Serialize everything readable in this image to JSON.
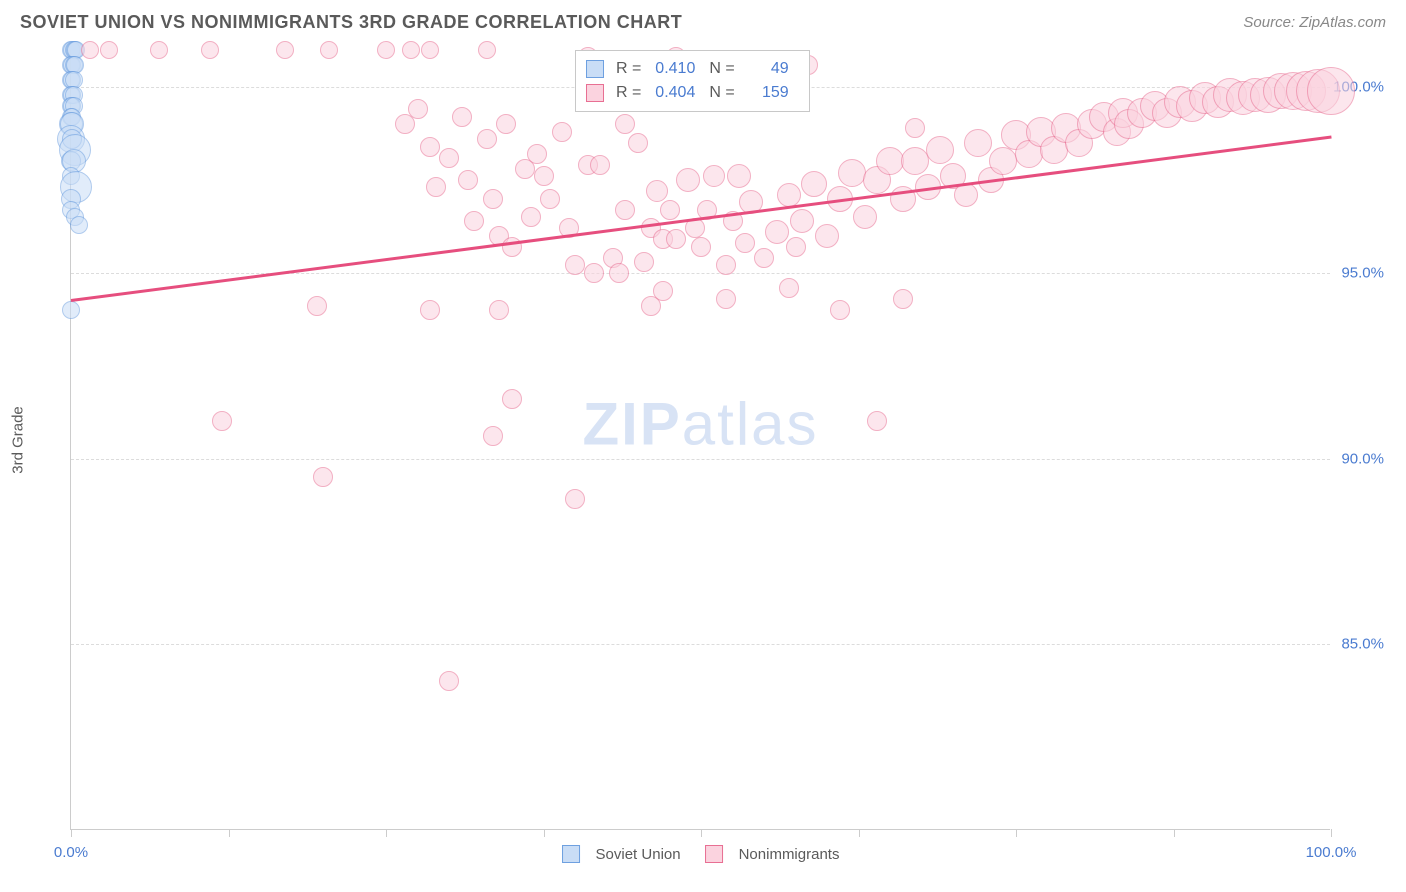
{
  "title": "SOVIET UNION VS NONIMMIGRANTS 3RD GRADE CORRELATION CHART",
  "source_prefix": "Source: ",
  "source_name": "ZipAtlas.com",
  "y_axis_label": "3rd Grade",
  "watermark_a": "ZIP",
  "watermark_b": "atlas",
  "chart": {
    "type": "scatter",
    "background_color": "#ffffff",
    "grid_color": "#dcdcdc",
    "axis_color": "#cccccc",
    "tick_label_color": "#4a7bd0",
    "xlim": [
      0,
      100
    ],
    "ylim": [
      80,
      101
    ],
    "x_ticks": [
      0,
      12.5,
      25,
      37.5,
      50,
      62.5,
      75,
      87.5,
      100
    ],
    "x_tick_labels": {
      "0": "0.0%",
      "100": "100.0%"
    },
    "y_ticks": [
      85,
      90,
      95,
      100
    ],
    "y_tick_labels": {
      "85": "85.0%",
      "90": "90.0%",
      "95": "95.0%",
      "100": "100.0%"
    },
    "stats_box": {
      "left_pct": 40,
      "top_pct": 0
    },
    "series": [
      {
        "id": "soviet",
        "label": "Soviet Union",
        "fill": "#c9ddf6",
        "stroke": "#6ea0e0",
        "fill_opacity": 0.55,
        "stroke_width": 1.5,
        "R_label": "R =",
        "R": "0.410",
        "N_label": "N =",
        "N": "49",
        "marker_r": 9,
        "trend": null,
        "points": [
          [
            0.0,
            101.0,
            9
          ],
          [
            0.1,
            101.0,
            9
          ],
          [
            0.2,
            101.0,
            9
          ],
          [
            0.3,
            101.0,
            9
          ],
          [
            0.4,
            101.0,
            9
          ],
          [
            0.0,
            100.6,
            9
          ],
          [
            0.1,
            100.6,
            9
          ],
          [
            0.2,
            100.6,
            9
          ],
          [
            0.3,
            100.6,
            9
          ],
          [
            0.0,
            100.2,
            9
          ],
          [
            0.1,
            100.2,
            9
          ],
          [
            0.2,
            100.2,
            9
          ],
          [
            0.0,
            99.8,
            9
          ],
          [
            0.1,
            99.8,
            9
          ],
          [
            0.2,
            99.8,
            9
          ],
          [
            0.0,
            99.5,
            9
          ],
          [
            0.1,
            99.5,
            9
          ],
          [
            0.2,
            99.5,
            9
          ],
          [
            0.0,
            99.2,
            9
          ],
          [
            0.1,
            99.2,
            9
          ],
          [
            0.0,
            99.0,
            12
          ],
          [
            0.1,
            99.0,
            12
          ],
          [
            0.0,
            98.6,
            14
          ],
          [
            0.1,
            98.6,
            10
          ],
          [
            0.3,
            98.3,
            16
          ],
          [
            0.0,
            98.0,
            10
          ],
          [
            0.2,
            98.0,
            12
          ],
          [
            0.0,
            97.6,
            9
          ],
          [
            0.4,
            97.3,
            16
          ],
          [
            0.0,
            97.0,
            10
          ],
          [
            0.0,
            96.7,
            9
          ],
          [
            0.3,
            96.5,
            9
          ],
          [
            0.6,
            96.3,
            9
          ],
          [
            0.0,
            94.0,
            9
          ]
        ]
      },
      {
        "id": "nonimm",
        "label": "Nonimmigrants",
        "fill": "#fbd3df",
        "stroke": "#e86f93",
        "fill_opacity": 0.55,
        "stroke_width": 1.5,
        "R_label": "R =",
        "R": "0.404",
        "N_label": "N =",
        "N": "159",
        "marker_r": 10,
        "trend": {
          "x1": 0,
          "y1": 94.3,
          "x2": 100,
          "y2": 98.7,
          "color": "#e64e7e",
          "width": 3
        },
        "points": [
          [
            1.5,
            101.0,
            9
          ],
          [
            3.0,
            101.0,
            9
          ],
          [
            7.0,
            101.0,
            9
          ],
          [
            11.0,
            101.0,
            9
          ],
          [
            17.0,
            101.0,
            9
          ],
          [
            20.5,
            101.0,
            9
          ],
          [
            25.0,
            101.0,
            9
          ],
          [
            27.0,
            101.0,
            9
          ],
          [
            28.5,
            101.0,
            9
          ],
          [
            33.0,
            101.0,
            9
          ],
          [
            41.0,
            100.8,
            10
          ],
          [
            48.0,
            100.8,
            10
          ],
          [
            58.5,
            100.6,
            10
          ],
          [
            26.5,
            99.0,
            10
          ],
          [
            27.5,
            99.4,
            10
          ],
          [
            28.5,
            98.4,
            10
          ],
          [
            29.0,
            97.3,
            10
          ],
          [
            30.0,
            98.1,
            10
          ],
          [
            31.0,
            99.2,
            10
          ],
          [
            31.5,
            97.5,
            10
          ],
          [
            32.0,
            96.4,
            10
          ],
          [
            33.0,
            98.6,
            10
          ],
          [
            33.5,
            97.0,
            10
          ],
          [
            34.0,
            96.0,
            10
          ],
          [
            34.5,
            99.0,
            10
          ],
          [
            35.0,
            95.7,
            10
          ],
          [
            36.0,
            97.8,
            10
          ],
          [
            36.5,
            96.5,
            10
          ],
          [
            37.0,
            98.2,
            10
          ],
          [
            37.5,
            97.6,
            10
          ],
          [
            38.0,
            97.0,
            10
          ],
          [
            39.0,
            98.8,
            10
          ],
          [
            39.5,
            96.2,
            10
          ],
          [
            40.0,
            95.2,
            10
          ],
          [
            41.0,
            97.9,
            10
          ],
          [
            41.5,
            95.0,
            10
          ],
          [
            42.0,
            97.9,
            10
          ],
          [
            43.0,
            95.4,
            10
          ],
          [
            43.5,
            95.0,
            10
          ],
          [
            44.0,
            96.7,
            10
          ],
          [
            45.0,
            98.5,
            10
          ],
          [
            45.5,
            95.3,
            10
          ],
          [
            46.0,
            96.2,
            10
          ],
          [
            46.5,
            97.2,
            11
          ],
          [
            47.0,
            95.9,
            10
          ],
          [
            47.5,
            96.7,
            10
          ],
          [
            48.0,
            95.9,
            10
          ],
          [
            49.0,
            97.5,
            12
          ],
          [
            49.5,
            96.2,
            10
          ],
          [
            50.0,
            95.7,
            10
          ],
          [
            50.5,
            96.7,
            10
          ],
          [
            51.0,
            97.6,
            11
          ],
          [
            52.0,
            95.2,
            10
          ],
          [
            52.5,
            96.4,
            10
          ],
          [
            53.0,
            97.6,
            12
          ],
          [
            53.5,
            95.8,
            10
          ],
          [
            54.0,
            96.9,
            12
          ],
          [
            55.0,
            95.4,
            10
          ],
          [
            56.0,
            96.1,
            12
          ],
          [
            57.0,
            97.1,
            12
          ],
          [
            57.5,
            95.7,
            10
          ],
          [
            58.0,
            96.4,
            12
          ],
          [
            59.0,
            97.4,
            13
          ],
          [
            60.0,
            96.0,
            12
          ],
          [
            61.0,
            97.0,
            13
          ],
          [
            62.0,
            97.7,
            14
          ],
          [
            63.0,
            96.5,
            12
          ],
          [
            64.0,
            97.5,
            14
          ],
          [
            65.0,
            98.0,
            14
          ],
          [
            66.0,
            97.0,
            13
          ],
          [
            67.0,
            98.0,
            14
          ],
          [
            68.0,
            97.3,
            13
          ],
          [
            69.0,
            98.3,
            14
          ],
          [
            70.0,
            97.6,
            13
          ],
          [
            71.0,
            97.1,
            12
          ],
          [
            72.0,
            98.5,
            14
          ],
          [
            73.0,
            97.5,
            13
          ],
          [
            74.0,
            98.0,
            14
          ],
          [
            75.0,
            98.7,
            15
          ],
          [
            76.0,
            98.2,
            14
          ],
          [
            77.0,
            98.8,
            15
          ],
          [
            78.0,
            98.3,
            14
          ],
          [
            79.0,
            98.9,
            15
          ],
          [
            80.0,
            98.5,
            14
          ],
          [
            81.0,
            99.0,
            15
          ],
          [
            82.0,
            99.2,
            15
          ],
          [
            83.0,
            98.8,
            14
          ],
          [
            83.5,
            99.3,
            15
          ],
          [
            84.0,
            99.0,
            15
          ],
          [
            85.0,
            99.3,
            15
          ],
          [
            86.0,
            99.5,
            15
          ],
          [
            87.0,
            99.3,
            15
          ],
          [
            88.0,
            99.6,
            16
          ],
          [
            89.0,
            99.5,
            16
          ],
          [
            90.0,
            99.7,
            16
          ],
          [
            91.0,
            99.6,
            16
          ],
          [
            92.0,
            99.8,
            17
          ],
          [
            93.0,
            99.7,
            17
          ],
          [
            94.0,
            99.8,
            17
          ],
          [
            95.0,
            99.8,
            18
          ],
          [
            96.0,
            99.9,
            18
          ],
          [
            97.0,
            99.9,
            19
          ],
          [
            98.0,
            99.9,
            20
          ],
          [
            99.0,
            99.9,
            22
          ],
          [
            100.0,
            99.9,
            24
          ],
          [
            12.0,
            91.0,
            10
          ],
          [
            19.5,
            94.1,
            10
          ],
          [
            20.0,
            89.5,
            10
          ],
          [
            28.5,
            94.0,
            10
          ],
          [
            30.0,
            84.0,
            10
          ],
          [
            33.5,
            90.6,
            10
          ],
          [
            34.0,
            94.0,
            10
          ],
          [
            35.0,
            91.6,
            10
          ],
          [
            40.0,
            88.9,
            10
          ],
          [
            46.0,
            94.1,
            10
          ],
          [
            47.0,
            94.5,
            10
          ],
          [
            52.0,
            94.3,
            10
          ],
          [
            57.0,
            94.6,
            10
          ],
          [
            61.0,
            94.0,
            10
          ],
          [
            64.0,
            91.0,
            10
          ],
          [
            66.0,
            94.3,
            10
          ],
          [
            67.0,
            98.9,
            10
          ],
          [
            44.0,
            99.0,
            10
          ]
        ]
      }
    ]
  }
}
